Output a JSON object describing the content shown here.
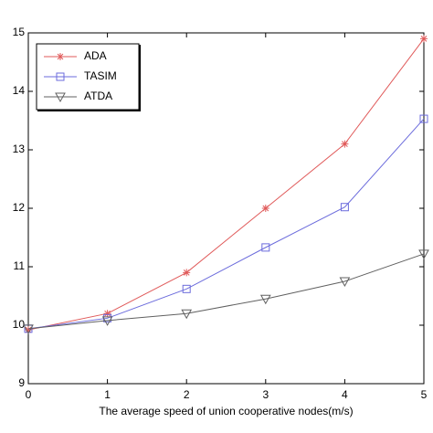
{
  "chart_data": {
    "type": "line",
    "x_label": "The average speed of union cooperative nodes(m/s)",
    "x": [
      0,
      1,
      2,
      3,
      4,
      5
    ],
    "series": [
      {
        "name": "ADA",
        "color": "#e05a5a",
        "marker": "star",
        "values": [
          9.92,
          10.2,
          10.9,
          12.0,
          13.1,
          14.9
        ]
      },
      {
        "name": "TASIM",
        "color": "#6b6bdc",
        "marker": "square",
        "values": [
          9.94,
          10.12,
          10.62,
          11.33,
          12.02,
          13.53
        ]
      },
      {
        "name": "ATDA",
        "color": "#606060",
        "marker": "triangle-down",
        "values": [
          9.94,
          10.08,
          10.2,
          10.45,
          10.75,
          11.22
        ]
      }
    ],
    "xlim": [
      0,
      5
    ],
    "xticks": [
      0,
      1,
      2,
      3,
      4,
      5
    ],
    "ylim": [
      9,
      15
    ],
    "yticks": [
      9,
      10,
      11,
      12,
      13,
      14,
      15
    ],
    "grid": false,
    "legend": "top-left"
  }
}
